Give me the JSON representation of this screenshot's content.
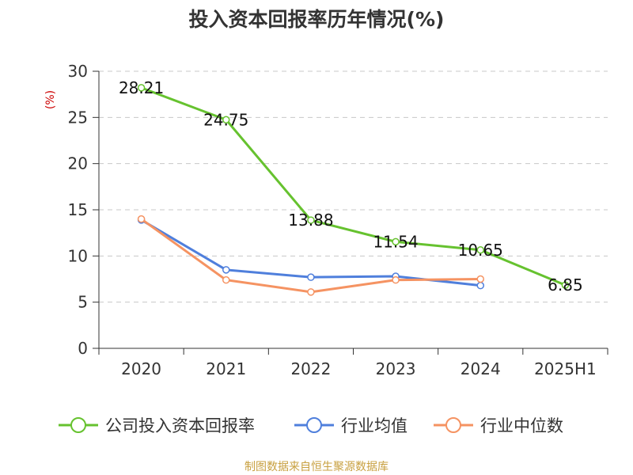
{
  "chart_data": {
    "type": "line",
    "title": "投入资本回报率历年情况(%)",
    "ylabel": "(%)",
    "categories": [
      "2020",
      "2021",
      "2022",
      "2023",
      "2024",
      "2025H1"
    ],
    "ylim": [
      0,
      30
    ],
    "yticks": [
      "0",
      "5",
      "10",
      "15",
      "20",
      "25",
      "30"
    ],
    "grid": true,
    "legend_position": "bottom",
    "series": [
      {
        "name": "公司投入资本回报率",
        "color": "#66c22f",
        "values": [
          28.21,
          24.75,
          13.88,
          11.54,
          10.65,
          6.85
        ],
        "labels": [
          "28.21",
          "24.75",
          "13.88",
          "11.54",
          "10.65",
          "6.85"
        ]
      },
      {
        "name": "行业均值",
        "color": "#4f7fdc",
        "values": [
          13.9,
          8.5,
          7.7,
          7.8,
          6.8,
          null
        ]
      },
      {
        "name": "行业中位数",
        "color": "#f59362",
        "values": [
          14.0,
          7.4,
          6.1,
          7.4,
          7.5,
          null
        ]
      }
    ],
    "source": "制图数据来自恒生聚源数据库"
  }
}
